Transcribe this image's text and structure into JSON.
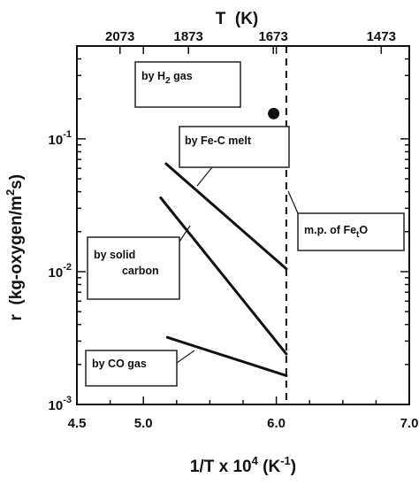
{
  "chart_data": {
    "type": "line",
    "title": "",
    "xlabel": "1/T x 10^4 (K^-1)",
    "xlabel_parts": {
      "prefix": "1/T x 10",
      "exp": "4",
      "mid": " (K",
      "unit_exp": "-1",
      "suffix": ")"
    },
    "ylabel": "r (kg-oxygen/m^2s)",
    "ylabel_parts": {
      "prefix": "r  (kg-oxygen/m",
      "exp": "2",
      "suffix": "s)"
    },
    "top_xlabel": "T  (K)",
    "xlim": [
      4.5,
      7.0
    ],
    "ylim": [
      0.001,
      0.5
    ],
    "y_scale": "log",
    "x_ticks": [
      4.5,
      5.0,
      6.0,
      7.0
    ],
    "x_tick_labels": [
      "4.5",
      "5.0",
      "6.0",
      "7.0"
    ],
    "top_ticks": [
      {
        "label": "2073",
        "x": 4.824
      },
      {
        "label": "1873",
        "x": 5.339
      },
      {
        "label": "1673",
        "x": 5.977
      },
      {
        "label": "1473",
        "x": 6.789
      }
    ],
    "y_ticks": [
      {
        "value": 0.1,
        "base": "10",
        "exp": "-1"
      },
      {
        "value": 0.01,
        "base": "10",
        "exp": "-2"
      },
      {
        "value": 0.001,
        "base": "10",
        "exp": "-3"
      }
    ],
    "vertical_line": {
      "x": 6.075,
      "style": "dashed"
    },
    "series": [
      {
        "name": "by H2 gas",
        "type": "point",
        "x": [
          5.98
        ],
        "y": [
          0.155
        ]
      },
      {
        "name": "by Fe-C melt",
        "x": [
          5.17,
          6.075
        ],
        "y": [
          0.065,
          0.0105
        ]
      },
      {
        "name": "by solid carbon",
        "x": [
          5.13,
          6.075
        ],
        "y": [
          0.036,
          0.0024
        ]
      },
      {
        "name": "by CO gas",
        "x": [
          5.18,
          6.075
        ],
        "y": [
          0.0032,
          0.00165
        ]
      }
    ],
    "annotations": [
      {
        "key": "h2",
        "parts": [
          "by H",
          "2",
          " gas"
        ],
        "sub": true
      },
      {
        "key": "fec",
        "lines": [
          "by Fe-C melt"
        ]
      },
      {
        "key": "solid",
        "lines": [
          "by solid",
          "carbon"
        ]
      },
      {
        "key": "co",
        "lines": [
          "by CO gas"
        ]
      },
      {
        "key": "mp",
        "parts": [
          "m.p. of Fe",
          "t",
          "O"
        ],
        "sub": true
      }
    ]
  }
}
